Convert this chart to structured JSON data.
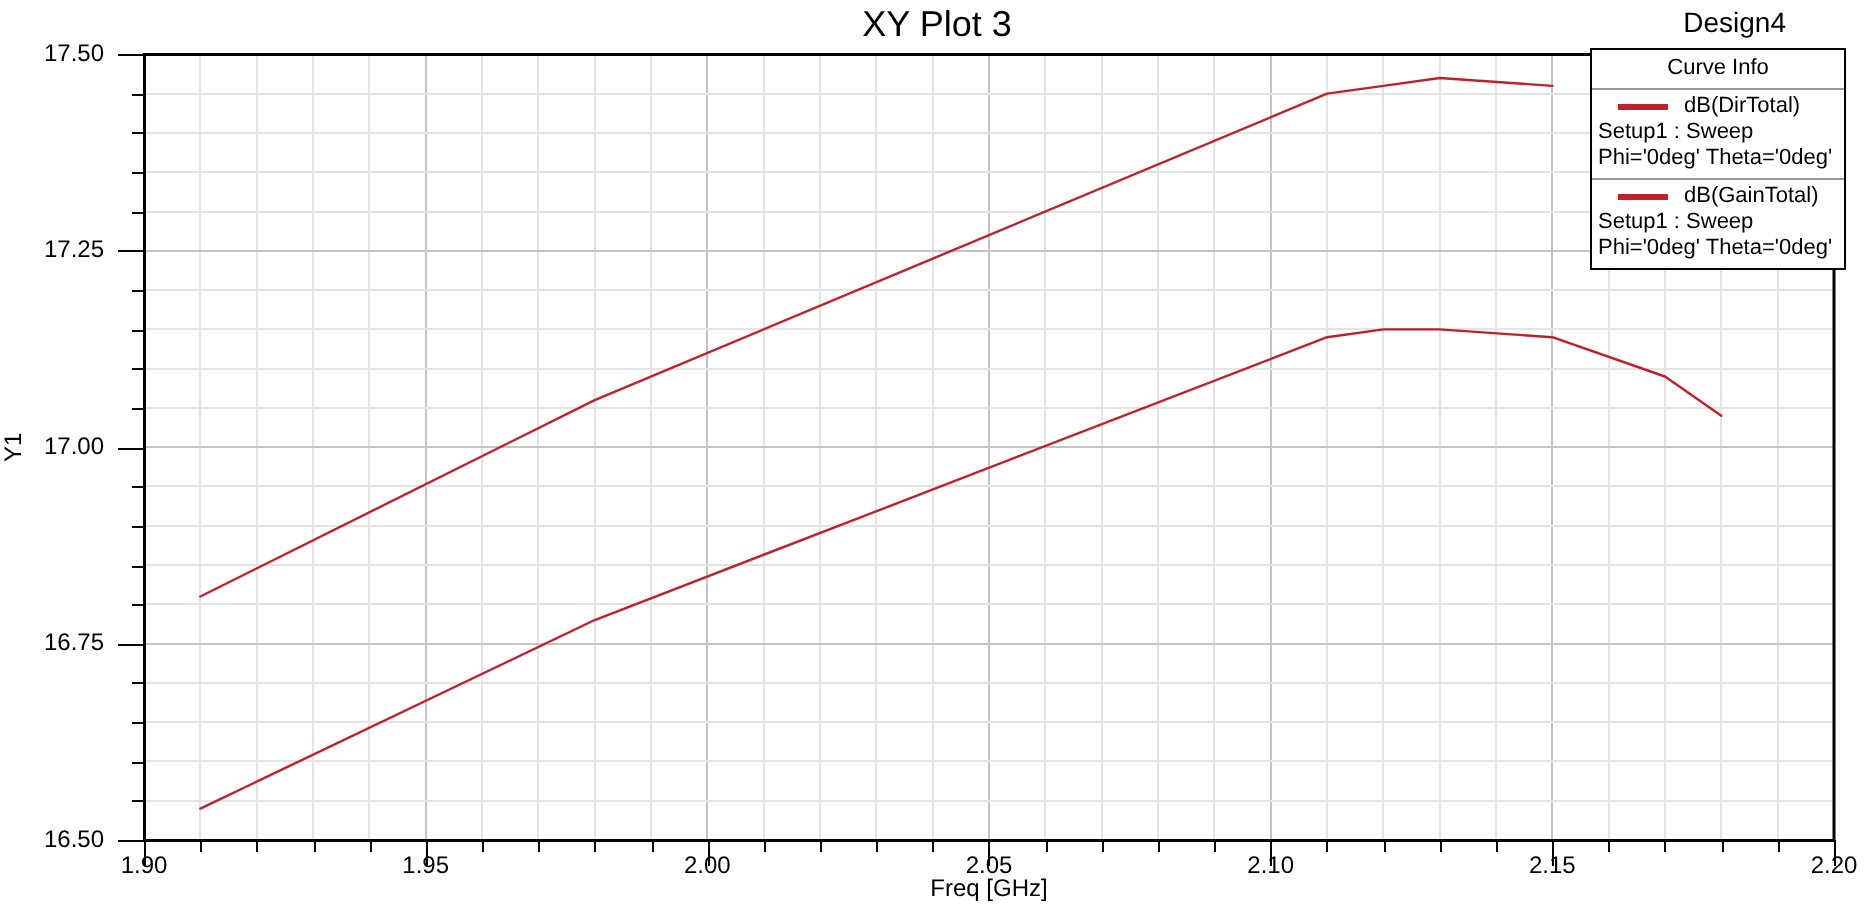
{
  "chart_data": {
    "type": "line",
    "title": "XY Plot 3",
    "xlabel": "Freq [GHz]",
    "ylabel": "Y1",
    "legend_title": "Curve Info",
    "annotations": [
      "Design4"
    ],
    "x": [
      1.91,
      1.98,
      2.11,
      2.12,
      2.13,
      2.15,
      2.17,
      2.18
    ],
    "series": [
      {
        "name": "dB(DirTotal)\nSetup1 : Sweep\nPhi='0deg' Theta='0deg'",
        "color": "#c0202a",
        "values": [
          16.81,
          17.06,
          17.45,
          17.46,
          17.47,
          17.46,
          null,
          null
        ]
      },
      {
        "name": "dB(GainTotal)\nSetup1 : Sweep\nPhi='0deg' Theta='0deg'",
        "color": "#c0202a",
        "values": [
          16.54,
          16.78,
          17.14,
          17.15,
          17.15,
          17.14,
          17.09,
          17.04
        ]
      }
    ],
    "xlim": [
      1.9,
      2.2
    ],
    "xticks": [
      {
        "value": 1.9,
        "label": "1.90"
      },
      {
        "value": 1.91,
        "label": null
      },
      {
        "value": 1.92,
        "label": null
      },
      {
        "value": 1.93,
        "label": null
      },
      {
        "value": 1.94,
        "label": null
      },
      {
        "value": 1.95,
        "label": "1.95"
      },
      {
        "value": 1.96,
        "label": null
      },
      {
        "value": 1.97,
        "label": null
      },
      {
        "value": 1.98,
        "label": null
      },
      {
        "value": 1.99,
        "label": null
      },
      {
        "value": 2.0,
        "label": "2.00"
      },
      {
        "value": 2.01,
        "label": null
      },
      {
        "value": 2.02,
        "label": null
      },
      {
        "value": 2.03,
        "label": null
      },
      {
        "value": 2.04,
        "label": null
      },
      {
        "value": 2.05,
        "label": "2.05"
      },
      {
        "value": 2.06,
        "label": null
      },
      {
        "value": 2.07,
        "label": null
      },
      {
        "value": 2.08,
        "label": null
      },
      {
        "value": 2.09,
        "label": null
      },
      {
        "value": 2.1,
        "label": "2.10"
      },
      {
        "value": 2.11,
        "label": null
      },
      {
        "value": 2.12,
        "label": null
      },
      {
        "value": 2.13,
        "label": null
      },
      {
        "value": 2.14,
        "label": null
      },
      {
        "value": 2.15,
        "label": "2.15"
      },
      {
        "value": 2.16,
        "label": null
      },
      {
        "value": 2.17,
        "label": null
      },
      {
        "value": 2.18,
        "label": null
      },
      {
        "value": 2.19,
        "label": null
      },
      {
        "value": 2.2,
        "label": "2.20"
      }
    ],
    "ylim": [
      16.5,
      17.5
    ],
    "yticks": [
      {
        "value": 16.5,
        "label": "16.50"
      },
      {
        "value": 16.55,
        "label": null
      },
      {
        "value": 16.6,
        "label": null
      },
      {
        "value": 16.65,
        "label": null
      },
      {
        "value": 16.7,
        "label": null
      },
      {
        "value": 16.75,
        "label": "16.75"
      },
      {
        "value": 16.8,
        "label": null
      },
      {
        "value": 16.85,
        "label": null
      },
      {
        "value": 16.9,
        "label": null
      },
      {
        "value": 16.95,
        "label": null
      },
      {
        "value": 17.0,
        "label": "17.00"
      },
      {
        "value": 17.05,
        "label": null
      },
      {
        "value": 17.1,
        "label": null
      },
      {
        "value": 17.15,
        "label": null
      },
      {
        "value": 17.2,
        "label": null
      },
      {
        "value": 17.25,
        "label": "17.25"
      },
      {
        "value": 17.3,
        "label": null
      },
      {
        "value": 17.35,
        "label": null
      },
      {
        "value": 17.4,
        "label": null
      },
      {
        "value": 17.45,
        "label": null
      },
      {
        "value": 17.5,
        "label": "17.50"
      }
    ],
    "grid": true,
    "legend": "top right",
    "marker": "none",
    "line_style": "solid"
  }
}
